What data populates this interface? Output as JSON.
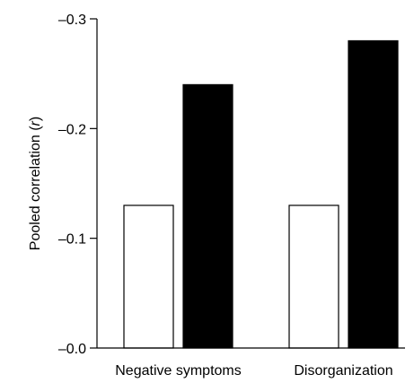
{
  "chart_data": {
    "type": "bar",
    "title": "",
    "xlabel": "",
    "ylabel": "Pooled correlation (r)",
    "ylabel_parts": [
      "Pooled correlation (",
      "r",
      ")"
    ],
    "categories": [
      "Negative symptoms",
      "Disorganization"
    ],
    "series": [
      {
        "values": [
          -0.13,
          -0.13
        ],
        "fill": "#ffffff"
      },
      {
        "values": [
          -0.24,
          -0.28
        ],
        "fill": "#000000"
      }
    ],
    "ylim": [
      0,
      -0.3
    ],
    "yticks": [
      {
        "value": 0,
        "label": "–0.0"
      },
      {
        "value": -0.1,
        "label": "–0.1"
      },
      {
        "value": -0.2,
        "label": "–0.2"
      },
      {
        "value": -0.3,
        "label": "–0.3"
      }
    ],
    "grid": false,
    "legend": "none"
  }
}
